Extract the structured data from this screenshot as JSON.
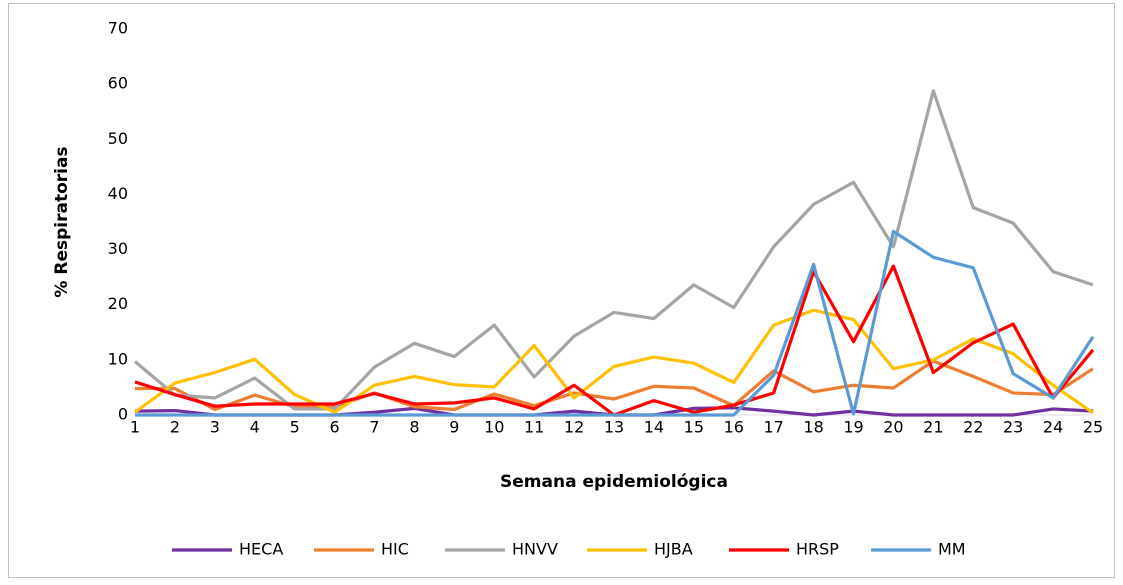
{
  "chart_data": {
    "type": "line",
    "x_label": "Semana epidemiológica",
    "y_label": "% Respiratorias",
    "x": [
      1,
      2,
      3,
      4,
      5,
      6,
      7,
      8,
      9,
      10,
      11,
      12,
      13,
      14,
      15,
      16,
      17,
      18,
      19,
      20,
      21,
      22,
      23,
      24,
      25
    ],
    "xlim": [
      1,
      25
    ],
    "xticks": [
      1,
      2,
      3,
      4,
      5,
      6,
      7,
      8,
      9,
      10,
      11,
      12,
      13,
      14,
      15,
      16,
      17,
      18,
      19,
      20,
      21,
      22,
      23,
      24,
      25
    ],
    "ylim": [
      0,
      70
    ],
    "yticks": [
      0,
      10,
      20,
      30,
      40,
      50,
      60,
      70
    ],
    "grid": false,
    "legend": "bottom",
    "series": [
      {
        "name": "HECA",
        "color": "#7030a0",
        "values": [
          0.7,
          0.8,
          0,
          0,
          0,
          0,
          0.5,
          1.2,
          0,
          0,
          0,
          0.7,
          0,
          0,
          1.2,
          1.3,
          0.7,
          0,
          0.7,
          0,
          0,
          0,
          0,
          1.1,
          0.7
        ]
      },
      {
        "name": "HIC",
        "color": "#ed7d31",
        "values": [
          4.8,
          4.8,
          1,
          3.6,
          1.5,
          1.5,
          4,
          1.5,
          1,
          3.8,
          1.7,
          4,
          2.9,
          5.2,
          4.9,
          1.7,
          8,
          4.2,
          5.4,
          4.9,
          9.8,
          7,
          4,
          3.7,
          8.4
        ]
      },
      {
        "name": "HNVV",
        "color": "#a5a5a5",
        "values": [
          9.7,
          3.6,
          3.1,
          6.7,
          1.1,
          1.1,
          8.7,
          13,
          10.6,
          16.3,
          6.9,
          14.3,
          18.6,
          17.5,
          23.6,
          19.5,
          30.5,
          38.2,
          42.2,
          30.5,
          58.8,
          37.6,
          34.8,
          26,
          23.6
        ]
      },
      {
        "name": "HJBA",
        "color": "#ffc000",
        "values": [
          0.5,
          5.8,
          7.7,
          10.1,
          3.7,
          0.5,
          5.4,
          7,
          5.5,
          5.1,
          12.6,
          3.1,
          8.8,
          10.5,
          9.4,
          5.9,
          16.3,
          19,
          17.3,
          8.4,
          10,
          13.8,
          11.1,
          5.4,
          0.4
        ]
      },
      {
        "name": "HRSP",
        "color": "#ff0000",
        "values": [
          6,
          3.7,
          1.6,
          2,
          2,
          2,
          3.9,
          2,
          2.2,
          3.1,
          1.1,
          5.4,
          0,
          2.6,
          0.5,
          1.8,
          4,
          26,
          13.3,
          27,
          7.7,
          13.1,
          16.5,
          3.1,
          11.8
        ]
      },
      {
        "name": "MM",
        "color": "#5b9bd5",
        "values": [
          0,
          0,
          0,
          0,
          0,
          0,
          0,
          0,
          0,
          0,
          0,
          0,
          0,
          0,
          0,
          0,
          7.2,
          27.3,
          0.2,
          33.3,
          28.6,
          26.7,
          7.5,
          3.1,
          14.2
        ]
      }
    ]
  }
}
